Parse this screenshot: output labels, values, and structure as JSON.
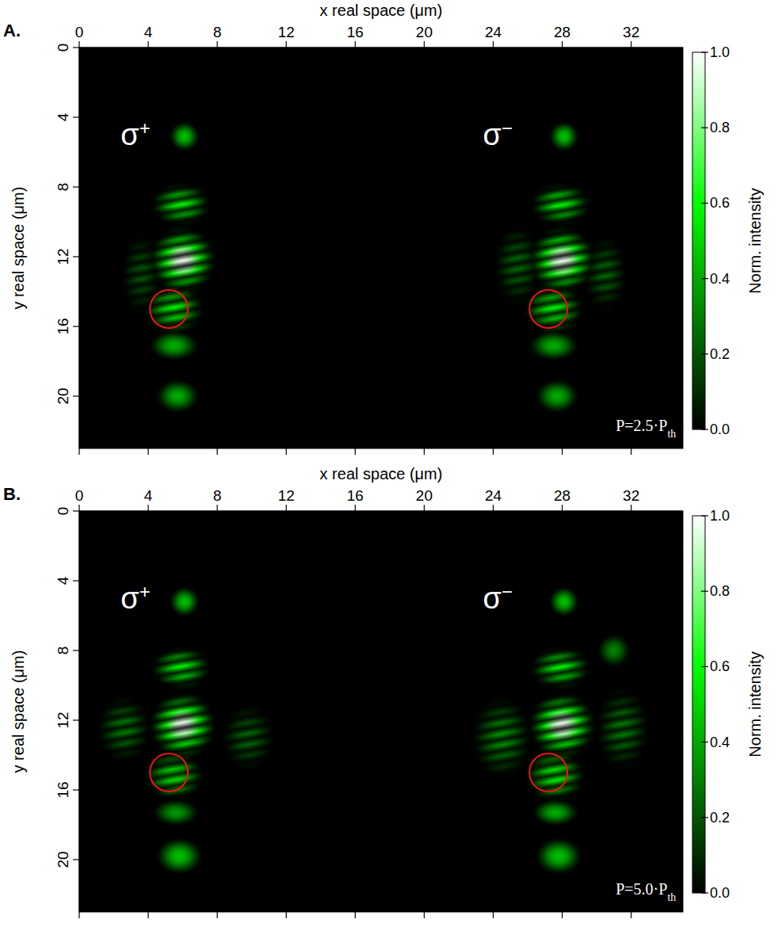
{
  "chart_data": [
    {
      "type": "heatmap",
      "panel_label": "A.",
      "xlabel": "x real space (μm)",
      "ylabel": "y real space (μm)",
      "xlim": [
        0,
        35
      ],
      "ylim": [
        0,
        23
      ],
      "xticks": [
        0,
        4,
        8,
        12,
        16,
        20,
        24,
        28,
        32
      ],
      "yticks": [
        0,
        4,
        8,
        12,
        16,
        20
      ],
      "colorbar": {
        "label": "Norm. intensity",
        "lim": [
          0,
          1
        ],
        "ticks": [
          {
            "value": 0,
            "label": "0.0"
          },
          {
            "value": 0.2,
            "label": "0.2"
          },
          {
            "value": 0.4,
            "label": "0.4"
          },
          {
            "value": 0.6,
            "label": "0.6"
          },
          {
            "value": 0.8,
            "label": "0.8"
          },
          {
            "value": 1,
            "label": "1.0"
          }
        ]
      },
      "annotations": [
        {
          "text": "σ",
          "sup": "+",
          "x": 2.4,
          "y": 5.6
        },
        {
          "text": "σ",
          "sup": "−",
          "x": 23.4,
          "y": 5.6
        },
        {
          "text": "P=2.5·P",
          "sub": "th",
          "x": 34.6,
          "y": 22.0
        }
      ],
      "circles": [
        {
          "x": 5.2,
          "y": 15.0,
          "r": 1.1,
          "color": "#e8141c"
        },
        {
          "x": 27.2,
          "y": 15.0,
          "r": 1.1,
          "color": "#e8141c"
        }
      ],
      "spots": [
        {
          "x": 6.1,
          "y": 5.1,
          "rx": 0.9,
          "ry": 0.9,
          "intensity": 0.45,
          "fringes": false
        },
        {
          "x": 5.9,
          "y": 9.0,
          "rx": 1.8,
          "ry": 1.3,
          "intensity": 0.6,
          "fringes": true
        },
        {
          "x": 6.0,
          "y": 12.2,
          "rx": 2.0,
          "ry": 2.0,
          "intensity": 1.0,
          "fringes": true
        },
        {
          "x": 5.5,
          "y": 15.0,
          "rx": 1.8,
          "ry": 1.5,
          "intensity": 0.6,
          "fringes": true
        },
        {
          "x": 5.5,
          "y": 17.1,
          "rx": 1.5,
          "ry": 0.9,
          "intensity": 0.4,
          "fringes": false
        },
        {
          "x": 5.7,
          "y": 20.0,
          "rx": 1.3,
          "ry": 1.0,
          "intensity": 0.4,
          "fringes": false
        },
        {
          "x": 3.6,
          "y": 13.0,
          "rx": 1.2,
          "ry": 2.5,
          "intensity": 0.2,
          "fringes": true
        },
        {
          "x": 28.1,
          "y": 5.1,
          "rx": 0.9,
          "ry": 0.9,
          "intensity": 0.45,
          "fringes": false
        },
        {
          "x": 27.9,
          "y": 9.0,
          "rx": 1.8,
          "ry": 1.3,
          "intensity": 0.6,
          "fringes": true
        },
        {
          "x": 28.0,
          "y": 12.2,
          "rx": 2.0,
          "ry": 2.0,
          "intensity": 1.0,
          "fringes": true
        },
        {
          "x": 27.5,
          "y": 15.0,
          "rx": 1.8,
          "ry": 1.5,
          "intensity": 0.6,
          "fringes": true
        },
        {
          "x": 27.5,
          "y": 17.1,
          "rx": 1.5,
          "ry": 0.9,
          "intensity": 0.4,
          "fringes": false
        },
        {
          "x": 27.7,
          "y": 20.0,
          "rx": 1.3,
          "ry": 1.0,
          "intensity": 0.4,
          "fringes": false
        },
        {
          "x": 25.4,
          "y": 12.5,
          "rx": 1.4,
          "ry": 2.5,
          "intensity": 0.25,
          "fringes": true
        },
        {
          "x": 30.5,
          "y": 13.0,
          "rx": 1.3,
          "ry": 2.3,
          "intensity": 0.25,
          "fringes": true
        }
      ]
    },
    {
      "type": "heatmap",
      "panel_label": "B.",
      "xlabel": "x real space (μm)",
      "ylabel": "y real space (μm)",
      "xlim": [
        0,
        35
      ],
      "ylim": [
        0,
        23
      ],
      "xticks": [
        0,
        4,
        8,
        12,
        16,
        20,
        24,
        28,
        32
      ],
      "yticks": [
        0,
        4,
        8,
        12,
        16,
        20
      ],
      "colorbar": {
        "label": "Norm. intensity",
        "lim": [
          0,
          1
        ],
        "ticks": [
          {
            "value": 0,
            "label": "0.0"
          },
          {
            "value": 0.2,
            "label": "0.2"
          },
          {
            "value": 0.4,
            "label": "0.4"
          },
          {
            "value": 0.6,
            "label": "0.6"
          },
          {
            "value": 0.8,
            "label": "0.8"
          },
          {
            "value": 1,
            "label": "1.0"
          }
        ]
      },
      "annotations": [
        {
          "text": "σ",
          "sup": "+",
          "x": 2.4,
          "y": 5.6
        },
        {
          "text": "σ",
          "sup": "−",
          "x": 23.4,
          "y": 5.6
        },
        {
          "text": "P=5.0·P",
          "sub": "th",
          "x": 34.6,
          "y": 22.0
        }
      ],
      "circles": [
        {
          "x": 5.2,
          "y": 15.0,
          "r": 1.1,
          "color": "#e8141c"
        },
        {
          "x": 27.2,
          "y": 15.0,
          "r": 1.1,
          "color": "#e8141c"
        }
      ],
      "spots": [
        {
          "x": 6.1,
          "y": 5.2,
          "rx": 0.9,
          "ry": 0.9,
          "intensity": 0.45,
          "fringes": false
        },
        {
          "x": 5.9,
          "y": 9.0,
          "rx": 1.8,
          "ry": 1.3,
          "intensity": 0.6,
          "fringes": true
        },
        {
          "x": 6.0,
          "y": 12.3,
          "rx": 2.0,
          "ry": 2.0,
          "intensity": 1.0,
          "fringes": true
        },
        {
          "x": 5.5,
          "y": 15.2,
          "rx": 1.8,
          "ry": 1.5,
          "intensity": 0.55,
          "fringes": true
        },
        {
          "x": 5.6,
          "y": 17.3,
          "rx": 1.4,
          "ry": 0.8,
          "intensity": 0.35,
          "fringes": false
        },
        {
          "x": 5.8,
          "y": 19.8,
          "rx": 1.4,
          "ry": 1.1,
          "intensity": 0.45,
          "fringes": false
        },
        {
          "x": 2.6,
          "y": 12.5,
          "rx": 1.6,
          "ry": 2.0,
          "intensity": 0.3,
          "fringes": true
        },
        {
          "x": 9.8,
          "y": 13.0,
          "rx": 1.6,
          "ry": 2.0,
          "intensity": 0.25,
          "fringes": true
        },
        {
          "x": 28.1,
          "y": 5.2,
          "rx": 0.9,
          "ry": 0.9,
          "intensity": 0.45,
          "fringes": false
        },
        {
          "x": 27.9,
          "y": 9.0,
          "rx": 1.8,
          "ry": 1.3,
          "intensity": 0.6,
          "fringes": true
        },
        {
          "x": 28.0,
          "y": 12.3,
          "rx": 2.0,
          "ry": 2.0,
          "intensity": 1.0,
          "fringes": true
        },
        {
          "x": 27.6,
          "y": 15.2,
          "rx": 1.8,
          "ry": 1.6,
          "intensity": 0.6,
          "fringes": true
        },
        {
          "x": 27.6,
          "y": 17.3,
          "rx": 1.4,
          "ry": 0.8,
          "intensity": 0.4,
          "fringes": false
        },
        {
          "x": 27.8,
          "y": 19.8,
          "rx": 1.4,
          "ry": 1.1,
          "intensity": 0.45,
          "fringes": false
        },
        {
          "x": 24.5,
          "y": 13.0,
          "rx": 1.8,
          "ry": 2.5,
          "intensity": 0.35,
          "fringes": true
        },
        {
          "x": 31.5,
          "y": 12.5,
          "rx": 1.6,
          "ry": 2.5,
          "intensity": 0.3,
          "fringes": true
        },
        {
          "x": 31.0,
          "y": 8.0,
          "rx": 1.0,
          "ry": 1.0,
          "intensity": 0.3,
          "fringes": false
        }
      ]
    }
  ]
}
